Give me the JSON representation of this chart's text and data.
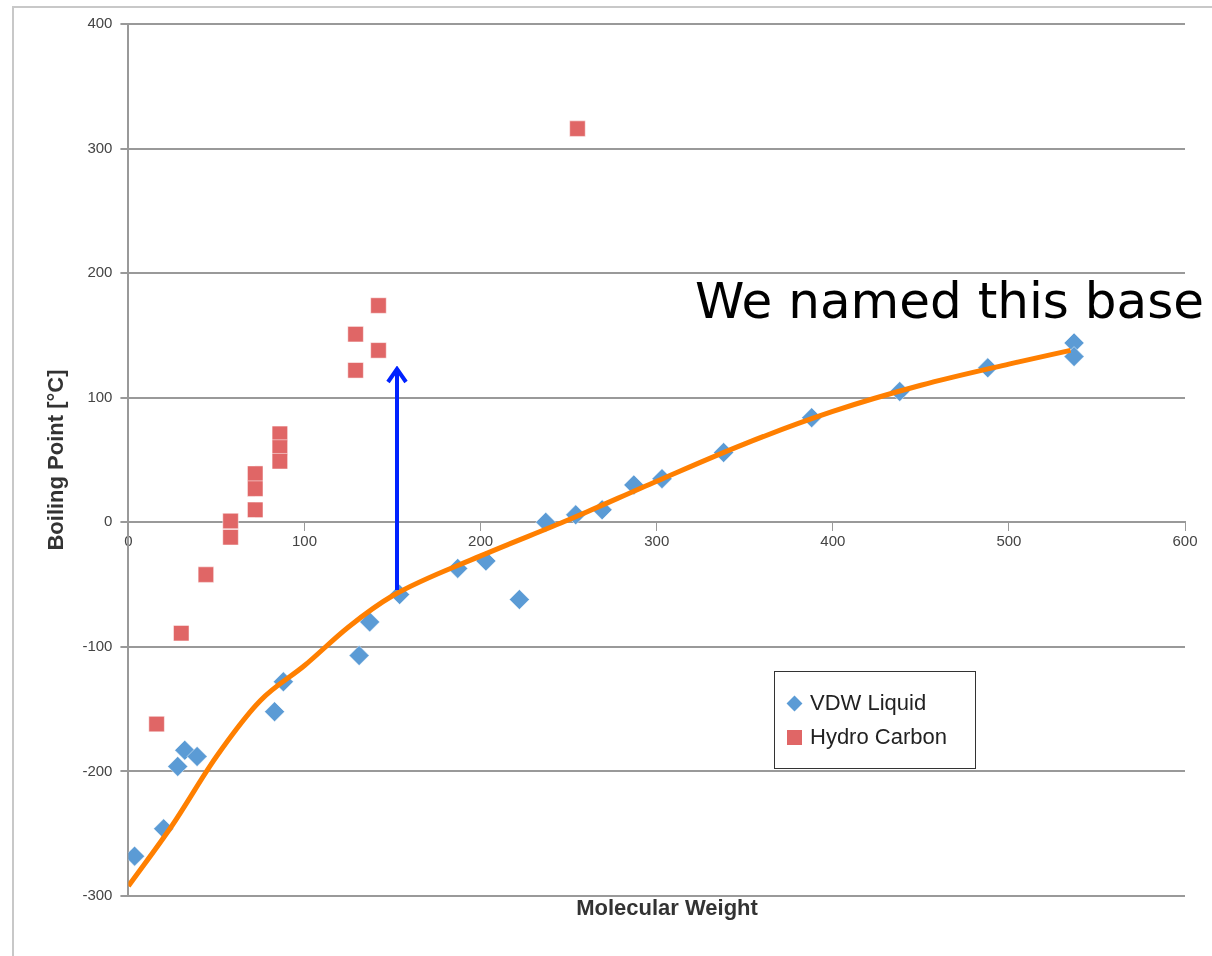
{
  "chart_data": {
    "type": "scatter",
    "xlabel": "Molecular Weight",
    "ylabel": "Boiling Point [°C]",
    "xlim": [
      0,
      600
    ],
    "xticks": [
      0,
      100,
      200,
      300,
      400,
      500,
      600
    ],
    "ylim": [
      -300,
      400
    ],
    "yticks": [
      -300,
      -200,
      -100,
      0,
      100,
      200,
      300,
      400
    ],
    "grid": "y",
    "legend": "bottom right",
    "annotations": [
      "We named this base"
    ],
    "series": [
      {
        "name": "VDW Liquid",
        "color": "#5b9bd5",
        "marker": "diamond",
        "x": [
          3.5,
          20,
          28,
          32,
          39,
          83,
          88,
          131,
          137,
          154,
          187,
          203,
          222,
          237,
          254,
          269,
          287,
          303,
          338,
          388,
          438,
          488,
          537,
          537
        ],
        "values": [
          -268,
          -246,
          -196,
          -183,
          -188,
          -152,
          -128,
          -107,
          -80,
          -58,
          -37,
          -31,
          -62,
          0,
          6,
          10,
          30,
          35,
          56,
          84,
          105,
          124,
          144,
          133
        ]
      },
      {
        "name": "Hydro Carbon",
        "color": "#e06666",
        "marker": "square",
        "x": [
          16,
          30,
          44,
          58,
          58,
          72,
          72,
          72,
          86,
          86,
          86,
          129,
          129,
          142,
          142,
          255
        ],
        "values": [
          -162,
          -89,
          -42,
          1,
          -12,
          39,
          27,
          10,
          71,
          60,
          49,
          151,
          122,
          174,
          138,
          316
        ]
      },
      {
        "type": "line",
        "color": "#ff7f00",
        "marker": "none",
        "x": [
          0,
          25,
          50,
          75,
          100,
          125,
          150,
          200,
          250,
          300,
          350,
          400,
          450,
          500,
          535
        ],
        "values": [
          -292,
          -243,
          -188,
          -143,
          -115,
          -84,
          -59,
          -27,
          2,
          33,
          63,
          89,
          110,
          127,
          138
        ]
      }
    ]
  }
}
